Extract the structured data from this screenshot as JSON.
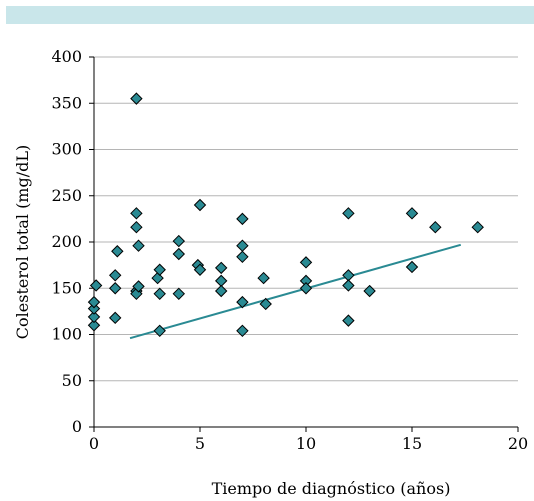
{
  "header_band": {
    "color": "#c9e6ea"
  },
  "chart_data": {
    "type": "scatter",
    "xlabel": "Tiempo de diagnóstico (años)",
    "ylabel": "Colesterol total (mg/dL)",
    "xlim": [
      0,
      20
    ],
    "ylim": [
      0,
      400
    ],
    "x_ticks": [
      0,
      5,
      10,
      15,
      20
    ],
    "y_ticks": [
      0,
      50,
      100,
      150,
      200,
      250,
      300,
      350,
      400
    ],
    "grid": "horizontal",
    "marker": "diamond",
    "marker_color": "#2a8a93",
    "marker_edge": "#000000",
    "trendline_color": "#2a8a93",
    "points": [
      {
        "x": 0.0,
        "y": 110
      },
      {
        "x": 0.0,
        "y": 119
      },
      {
        "x": 0.0,
        "y": 128
      },
      {
        "x": 0.0,
        "y": 135
      },
      {
        "x": 0.1,
        "y": 153
      },
      {
        "x": 1.0,
        "y": 118
      },
      {
        "x": 1.0,
        "y": 150
      },
      {
        "x": 1.0,
        "y": 164
      },
      {
        "x": 1.1,
        "y": 190
      },
      {
        "x": 2.0,
        "y": 355
      },
      {
        "x": 2.0,
        "y": 231
      },
      {
        "x": 2.0,
        "y": 216
      },
      {
        "x": 2.0,
        "y": 147
      },
      {
        "x": 2.0,
        "y": 144
      },
      {
        "x": 2.1,
        "y": 196
      },
      {
        "x": 2.1,
        "y": 152
      },
      {
        "x": 3.0,
        "y": 161
      },
      {
        "x": 3.1,
        "y": 170
      },
      {
        "x": 3.1,
        "y": 144
      },
      {
        "x": 3.1,
        "y": 104
      },
      {
        "x": 4.0,
        "y": 201
      },
      {
        "x": 4.0,
        "y": 187
      },
      {
        "x": 4.0,
        "y": 144
      },
      {
        "x": 5.0,
        "y": 240
      },
      {
        "x": 4.9,
        "y": 175
      },
      {
        "x": 5.0,
        "y": 170
      },
      {
        "x": 6.0,
        "y": 172
      },
      {
        "x": 6.0,
        "y": 158
      },
      {
        "x": 6.0,
        "y": 147
      },
      {
        "x": 7.0,
        "y": 225
      },
      {
        "x": 7.0,
        "y": 196
      },
      {
        "x": 7.0,
        "y": 184
      },
      {
        "x": 7.0,
        "y": 135
      },
      {
        "x": 7.0,
        "y": 104
      },
      {
        "x": 8.0,
        "y": 161
      },
      {
        "x": 8.1,
        "y": 133
      },
      {
        "x": 10.0,
        "y": 178
      },
      {
        "x": 10.0,
        "y": 158
      },
      {
        "x": 10.0,
        "y": 150
      },
      {
        "x": 12.0,
        "y": 231
      },
      {
        "x": 12.0,
        "y": 164
      },
      {
        "x": 12.0,
        "y": 153
      },
      {
        "x": 12.0,
        "y": 115
      },
      {
        "x": 13.0,
        "y": 147
      },
      {
        "x": 15.0,
        "y": 231
      },
      {
        "x": 15.0,
        "y": 173
      },
      {
        "x": 16.1,
        "y": 216
      },
      {
        "x": 18.1,
        "y": 216
      }
    ],
    "trendline": {
      "x": [
        1.7,
        17.3
      ],
      "y": [
        96,
        197
      ]
    }
  }
}
